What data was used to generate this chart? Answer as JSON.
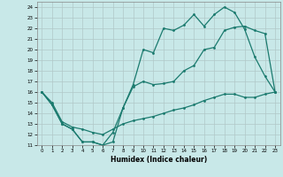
{
  "xlabel": "Humidex (Indice chaleur)",
  "background_color": "#c8e8e8",
  "grid_color": "#b0c8c8",
  "line_color": "#1a7a6e",
  "xlim": [
    -0.5,
    23.5
  ],
  "ylim": [
    11,
    24.5
  ],
  "xticks": [
    0,
    1,
    2,
    3,
    4,
    5,
    6,
    7,
    8,
    9,
    10,
    11,
    12,
    13,
    14,
    15,
    16,
    17,
    18,
    19,
    20,
    21,
    22,
    23
  ],
  "yticks": [
    11,
    12,
    13,
    14,
    15,
    16,
    17,
    18,
    19,
    20,
    21,
    22,
    23,
    24
  ],
  "line1_x": [
    0,
    1,
    2,
    3,
    4,
    5,
    6,
    7,
    8,
    9,
    10,
    11,
    12,
    13,
    14,
    15,
    16,
    17,
    18,
    19,
    20,
    21,
    22,
    23
  ],
  "line1_y": [
    16,
    14.8,
    13,
    12.5,
    11.3,
    11.3,
    11,
    12.2,
    14.5,
    16.7,
    20.0,
    19.7,
    22.0,
    21.8,
    22.3,
    23.3,
    22.2,
    23.3,
    24.0,
    23.5,
    21.9,
    19.3,
    17.5,
    16.0
  ],
  "line2_x": [
    0,
    1,
    2,
    3,
    4,
    5,
    6,
    7,
    8,
    9,
    10,
    11,
    12,
    13,
    14,
    15,
    16,
    17,
    18,
    19,
    20,
    21,
    22,
    23
  ],
  "line2_y": [
    16,
    14.8,
    13,
    12.5,
    11.3,
    11.3,
    11,
    11.3,
    14.5,
    16.5,
    17.0,
    16.7,
    16.8,
    17.0,
    18.0,
    18.5,
    20.0,
    20.2,
    21.8,
    22.1,
    22.2,
    21.8,
    21.5,
    16.0
  ],
  "line3_x": [
    0,
    1,
    2,
    3,
    4,
    5,
    6,
    7,
    8,
    9,
    10,
    11,
    12,
    13,
    14,
    15,
    16,
    17,
    18,
    19,
    20,
    21,
    22,
    23
  ],
  "line3_y": [
    16,
    15.0,
    13.2,
    12.7,
    12.5,
    12.2,
    12.0,
    12.5,
    13.0,
    13.3,
    13.5,
    13.7,
    14.0,
    14.3,
    14.5,
    14.8,
    15.2,
    15.5,
    15.8,
    15.8,
    15.5,
    15.5,
    15.8,
    16.0
  ]
}
